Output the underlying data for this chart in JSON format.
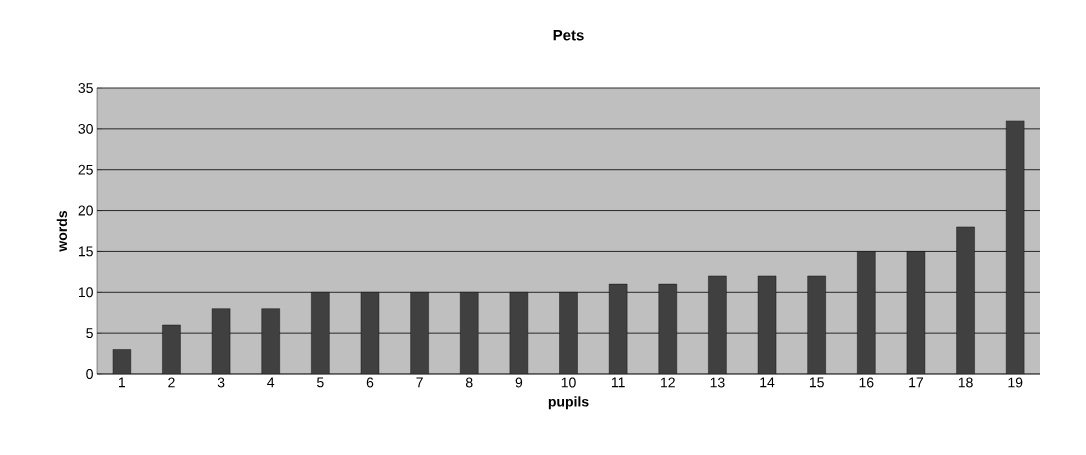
{
  "chart_data": {
    "type": "bar",
    "title": "Pets",
    "xlabel": "pupils",
    "ylabel": "words",
    "categories": [
      "1",
      "2",
      "3",
      "4",
      "5",
      "6",
      "7",
      "8",
      "9",
      "10",
      "11",
      "12",
      "13",
      "14",
      "15",
      "16",
      "17",
      "18",
      "19"
    ],
    "values": [
      3,
      6,
      8,
      8,
      10,
      10,
      10,
      10,
      10,
      10,
      11,
      11,
      12,
      12,
      12,
      15,
      15,
      18,
      31
    ],
    "color": "#404040",
    "ylim": [
      0,
      35
    ],
    "yticks": [
      0,
      5,
      10,
      15,
      20,
      25,
      30,
      35
    ],
    "grid": "y"
  }
}
